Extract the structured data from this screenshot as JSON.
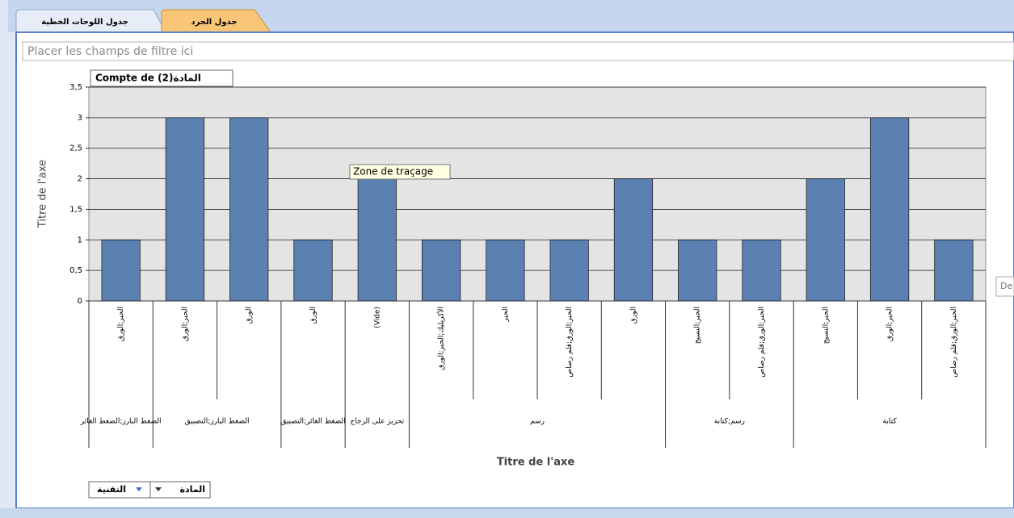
{
  "tabs": [
    "جدول اللوحات الخطية",
    "جدول الجرد"
  ],
  "filter_placeholder": "Placer les champs de filtre ici",
  "tooltip": "Zone de traçage",
  "side_label": "De",
  "drop_zones": [
    "المادة",
    "التقنية"
  ],
  "chart_data": {
    "type": "bar",
    "title": "Compte de المادة(2)",
    "x_label": "Titre de l'axe",
    "y_label": "Titre de l'axe",
    "categories": [
      "الحبر;الورق",
      "الحبر;الورق",
      "الورق",
      "الورق",
      "(Vide)",
      "الأكريليك;الحبر;الورق",
      "الحبر",
      "الحبر;الورق;قلم رصاص",
      "الورق",
      "الحبر;النسيج",
      "الحبر;الورق;قلم رصاص",
      "الحبر;النسيج",
      "الحبر;الورق",
      "الحبر;الورق;قلم رصاص"
    ],
    "category_groups": [
      "الضغط البارز;الضغط الغائر",
      "الضغط البارز;التصبيق",
      "الضغط البارز;التصبيق",
      "الضغط الغائر;التصبيق",
      "تحزيز على الزجاج",
      "رسم",
      "رسم",
      "رسم",
      "رسم",
      "رسم;كتابة",
      "رسم;كتابة",
      "كتابة",
      "كتابة",
      "كتابة"
    ],
    "values": [
      1,
      3,
      3,
      1,
      2,
      1,
      1,
      1,
      2,
      1,
      1,
      2,
      3,
      1
    ],
    "color": "#5b80b2",
    "ylim": [
      0,
      3.5
    ],
    "yticks": [
      0,
      {
        "value": 0.5,
        "label": "0,5"
      },
      1,
      {
        "value": 1.5,
        "label": "1,5"
      },
      2,
      {
        "value": 2.5,
        "label": "2,5"
      },
      3,
      {
        "value": 3.5,
        "label": "3,5"
      }
    ],
    "grid": true
  }
}
